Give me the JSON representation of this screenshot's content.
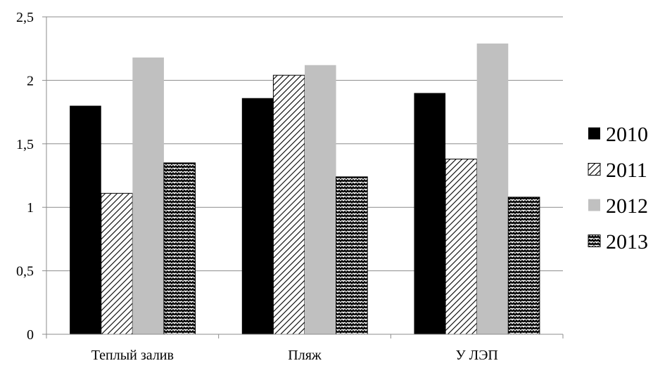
{
  "chart_data": {
    "type": "bar",
    "title": "",
    "xlabel": "",
    "ylabel": "",
    "ylim": [
      0,
      2.5
    ],
    "yticks": [
      "0",
      "0,5",
      "1",
      "1,5",
      "2",
      "2,5"
    ],
    "grid": true,
    "legend_position": "right",
    "categories": [
      "Теплый залив",
      "Пляж",
      "У ЛЭП"
    ],
    "series": [
      {
        "name": "2010",
        "values": [
          1.8,
          1.86,
          1.9
        ],
        "fill": "#000000",
        "pattern": "solid"
      },
      {
        "name": "2011",
        "values": [
          1.11,
          2.04,
          1.38
        ],
        "fill": "#ffffff",
        "pattern": "diagonal-hatch"
      },
      {
        "name": "2012",
        "values": [
          2.18,
          2.12,
          2.29
        ],
        "fill": "#c0c0c0",
        "pattern": "solid"
      },
      {
        "name": "2013",
        "values": [
          1.35,
          1.24,
          1.08
        ],
        "fill": "#000000",
        "pattern": "zigzag"
      }
    ]
  }
}
